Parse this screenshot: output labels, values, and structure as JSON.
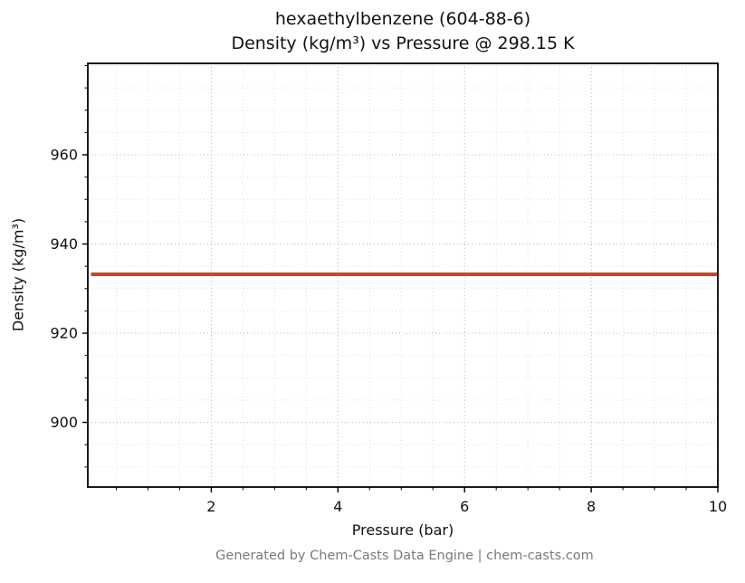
{
  "figure": {
    "title_line1": "hexaethylbenzene (604-88-6)",
    "title_line2": "Density (kg/m³) vs Pressure @ 298.15 K",
    "footer": "Generated by Chem-Casts Data Engine | chem-casts.com"
  },
  "chart_data": {
    "type": "line",
    "title": "hexaethylbenzene (604-88-6) — Density (kg/m³) vs Pressure @ 298.15 K",
    "xlabel": "Pressure (bar)",
    "ylabel": "Density (kg/m³)",
    "xlim": [
      0.05,
      10
    ],
    "ylim": [
      885.5,
      980.5
    ],
    "x_ticks": [
      2,
      4,
      6,
      8,
      10
    ],
    "y_ticks": [
      900,
      920,
      940,
      960
    ],
    "x_minor_step": 0.5,
    "y_minor_step": 5,
    "grid": true,
    "legend": "none",
    "series": [
      {
        "name": "density",
        "color": "#cf4420",
        "line_width": 4,
        "x": [
          0.1,
          2,
          4,
          6,
          8,
          10
        ],
        "y": [
          933.2,
          933.2,
          933.2,
          933.2,
          933.2,
          933.2
        ]
      }
    ]
  },
  "style": {
    "spine_color": "#000000",
    "major_grid_color": "#b8b8b8",
    "minor_grid_color": "#e0e0e0",
    "tick_label_color": "#111111"
  }
}
